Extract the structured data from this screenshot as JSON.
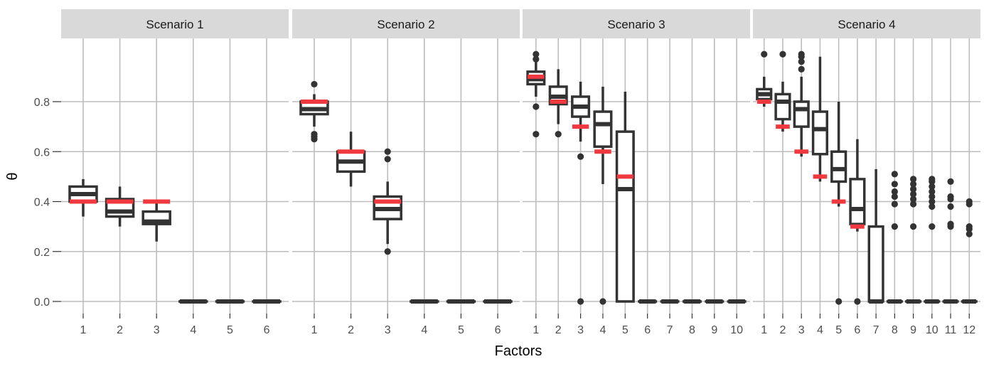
{
  "chart_data": {
    "type": "boxplot",
    "xlabel": "Factors",
    "ylabel": "θ",
    "ylim": [
      0,
      1
    ],
    "yticks": [
      0.0,
      0.2,
      0.4,
      0.6,
      0.8
    ],
    "ytick_labels": [
      "0.0",
      "0.2",
      "0.4",
      "0.6",
      "0.8"
    ],
    "grid": true,
    "reference_color": "#f0383f",
    "box_color": "#333333",
    "panels": [
      {
        "title": "Scenario 1",
        "factors": [
          "1",
          "2",
          "3",
          "4",
          "5",
          "6"
        ],
        "boxes": [
          {
            "factor": "1",
            "whisker_low": 0.34,
            "q1": 0.4,
            "median": 0.43,
            "q3": 0.46,
            "whisker_high": 0.49,
            "outliers": [],
            "reference": 0.4
          },
          {
            "factor": "2",
            "whisker_low": 0.3,
            "q1": 0.34,
            "median": 0.36,
            "q3": 0.41,
            "whisker_high": 0.46,
            "outliers": [],
            "reference": 0.4
          },
          {
            "factor": "3",
            "whisker_low": 0.24,
            "q1": 0.31,
            "median": 0.32,
            "q3": 0.36,
            "whisker_high": 0.4,
            "outliers": [],
            "reference": 0.4
          },
          {
            "factor": "4",
            "whisker_low": 0,
            "q1": 0,
            "median": 0,
            "q3": 0,
            "whisker_high": 0,
            "outliers": [],
            "reference": 0
          },
          {
            "factor": "5",
            "whisker_low": 0,
            "q1": 0,
            "median": 0,
            "q3": 0,
            "whisker_high": 0,
            "outliers": [],
            "reference": 0
          },
          {
            "factor": "6",
            "whisker_low": 0,
            "q1": 0,
            "median": 0,
            "q3": 0,
            "whisker_high": 0,
            "outliers": [],
            "reference": 0
          }
        ]
      },
      {
        "title": "Scenario 2",
        "factors": [
          "1",
          "2",
          "3",
          "4",
          "5",
          "6"
        ],
        "boxes": [
          {
            "factor": "1",
            "whisker_low": 0.7,
            "q1": 0.75,
            "median": 0.77,
            "q3": 0.8,
            "whisker_high": 0.83,
            "outliers": [
              0.65,
              0.66,
              0.67,
              0.87
            ],
            "reference": 0.8
          },
          {
            "factor": "2",
            "whisker_low": 0.46,
            "q1": 0.52,
            "median": 0.56,
            "q3": 0.6,
            "whisker_high": 0.68,
            "outliers": [],
            "reference": 0.6
          },
          {
            "factor": "3",
            "whisker_low": 0.23,
            "q1": 0.33,
            "median": 0.37,
            "q3": 0.42,
            "whisker_high": 0.48,
            "outliers": [
              0.2,
              0.57,
              0.6
            ],
            "reference": 0.4
          },
          {
            "factor": "4",
            "whisker_low": 0,
            "q1": 0,
            "median": 0,
            "q3": 0,
            "whisker_high": 0,
            "outliers": [],
            "reference": 0
          },
          {
            "factor": "5",
            "whisker_low": 0,
            "q1": 0,
            "median": 0,
            "q3": 0,
            "whisker_high": 0,
            "outliers": [],
            "reference": 0
          },
          {
            "factor": "6",
            "whisker_low": 0,
            "q1": 0,
            "median": 0,
            "q3": 0,
            "whisker_high": 0,
            "outliers": [],
            "reference": 0
          }
        ]
      },
      {
        "title": "Scenario 3",
        "factors": [
          "1",
          "2",
          "3",
          "4",
          "5",
          "6",
          "7",
          "8",
          "9",
          "10"
        ],
        "boxes": [
          {
            "factor": "1",
            "whisker_low": 0.82,
            "q1": 0.87,
            "median": 0.89,
            "q3": 0.92,
            "whisker_high": 0.96,
            "outliers": [
              0.67,
              0.78,
              0.97,
              0.99
            ],
            "reference": 0.9
          },
          {
            "factor": "2",
            "whisker_low": 0.71,
            "q1": 0.79,
            "median": 0.82,
            "q3": 0.86,
            "whisker_high": 0.93,
            "outliers": [
              0.67
            ],
            "reference": 0.8
          },
          {
            "factor": "3",
            "whisker_low": 0.64,
            "q1": 0.74,
            "median": 0.78,
            "q3": 0.82,
            "whisker_high": 0.88,
            "outliers": [
              0.0,
              0.58
            ],
            "reference": 0.7
          },
          {
            "factor": "4",
            "whisker_low": 0.47,
            "q1": 0.62,
            "median": 0.71,
            "q3": 0.76,
            "whisker_high": 0.86,
            "outliers": [
              0.0
            ],
            "reference": 0.6
          },
          {
            "factor": "5",
            "whisker_low": 0.0,
            "q1": 0.0,
            "median": 0.45,
            "q3": 0.68,
            "whisker_high": 0.84,
            "outliers": [],
            "reference": 0.5
          },
          {
            "factor": "6",
            "whisker_low": 0,
            "q1": 0,
            "median": 0,
            "q3": 0,
            "whisker_high": 0,
            "outliers": [],
            "reference": 0
          },
          {
            "factor": "7",
            "whisker_low": 0,
            "q1": 0,
            "median": 0,
            "q3": 0,
            "whisker_high": 0,
            "outliers": [],
            "reference": 0
          },
          {
            "factor": "8",
            "whisker_low": 0,
            "q1": 0,
            "median": 0,
            "q3": 0,
            "whisker_high": 0,
            "outliers": [],
            "reference": 0
          },
          {
            "factor": "9",
            "whisker_low": 0,
            "q1": 0,
            "median": 0,
            "q3": 0,
            "whisker_high": 0,
            "outliers": [],
            "reference": 0
          },
          {
            "factor": "10",
            "whisker_low": 0,
            "q1": 0,
            "median": 0,
            "q3": 0,
            "whisker_high": 0,
            "outliers": [],
            "reference": 0
          }
        ]
      },
      {
        "title": "Scenario 4",
        "factors": [
          "1",
          "2",
          "3",
          "4",
          "5",
          "6",
          "7",
          "8",
          "9",
          "10",
          "11",
          "12"
        ],
        "boxes": [
          {
            "factor": "1",
            "whisker_low": 0.78,
            "q1": 0.81,
            "median": 0.83,
            "q3": 0.85,
            "whisker_high": 0.9,
            "outliers": [
              0.99
            ],
            "reference": 0.8
          },
          {
            "factor": "2",
            "whisker_low": 0.68,
            "q1": 0.73,
            "median": 0.8,
            "q3": 0.83,
            "whisker_high": 0.88,
            "outliers": [
              0.99
            ],
            "reference": 0.7
          },
          {
            "factor": "3",
            "whisker_low": 0.58,
            "q1": 0.7,
            "median": 0.77,
            "q3": 0.8,
            "whisker_high": 0.9,
            "outliers": [
              0.93,
              0.96,
              0.98,
              0.99
            ],
            "reference": 0.6
          },
          {
            "factor": "4",
            "whisker_low": 0.48,
            "q1": 0.59,
            "median": 0.69,
            "q3": 0.76,
            "whisker_high": 0.98,
            "outliers": [],
            "reference": 0.5
          },
          {
            "factor": "5",
            "whisker_low": 0.38,
            "q1": 0.48,
            "median": 0.53,
            "q3": 0.6,
            "whisker_high": 0.8,
            "outliers": [
              0.0
            ],
            "reference": 0.4
          },
          {
            "factor": "6",
            "whisker_low": 0.28,
            "q1": 0.31,
            "median": 0.37,
            "q3": 0.49,
            "whisker_high": 0.65,
            "outliers": [
              0.0
            ],
            "reference": 0.3
          },
          {
            "factor": "7",
            "whisker_low": 0.0,
            "q1": 0.0,
            "median": 0.0,
            "q3": 0.3,
            "whisker_high": 0.53,
            "outliers": [],
            "reference": 0
          },
          {
            "factor": "8",
            "whisker_low": 0,
            "q1": 0,
            "median": 0,
            "q3": 0,
            "whisker_high": 0,
            "outliers": [
              0.3,
              0.39,
              0.42,
              0.44,
              0.47,
              0.51
            ],
            "reference": 0
          },
          {
            "factor": "9",
            "whisker_low": 0,
            "q1": 0,
            "median": 0,
            "q3": 0,
            "whisker_high": 0,
            "outliers": [
              0.3,
              0.39,
              0.41,
              0.43,
              0.45,
              0.47,
              0.49
            ],
            "reference": 0
          },
          {
            "factor": "10",
            "whisker_low": 0,
            "q1": 0,
            "median": 0,
            "q3": 0,
            "whisker_high": 0,
            "outliers": [
              0.3,
              0.38,
              0.4,
              0.42,
              0.44,
              0.46,
              0.48,
              0.49
            ],
            "reference": 0
          },
          {
            "factor": "11",
            "whisker_low": 0,
            "q1": 0,
            "median": 0,
            "q3": 0,
            "whisker_high": 0,
            "outliers": [
              0.3,
              0.31,
              0.38,
              0.41,
              0.42,
              0.48
            ],
            "reference": 0
          },
          {
            "factor": "12",
            "whisker_low": 0,
            "q1": 0,
            "median": 0,
            "q3": 0,
            "whisker_high": 0,
            "outliers": [
              0.27,
              0.29,
              0.3,
              0.39,
              0.4
            ],
            "reference": 0
          }
        ]
      }
    ]
  }
}
